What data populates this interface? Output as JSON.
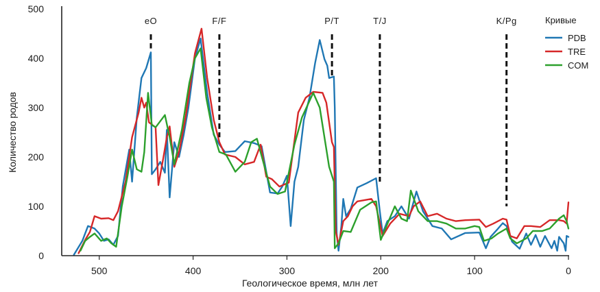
{
  "chart_data": {
    "type": "line",
    "xlabel": "Геологическое время, млн лет",
    "ylabel": "Количество родов",
    "xlim": [
      540,
      0
    ],
    "ylim": [
      0,
      500
    ],
    "x_reversed": true,
    "xticks": [
      500,
      400,
      300,
      200,
      100,
      0
    ],
    "yticks": [
      0,
      100,
      200,
      300,
      400,
      500
    ],
    "grid": false,
    "legend": {
      "title": "Кривые",
      "position": "right"
    },
    "events": [
      {
        "label": "eO",
        "x": 445,
        "y_bottom": 420
      },
      {
        "label": "F/F",
        "x": 372,
        "y_bottom": 240
      },
      {
        "label": "P/T",
        "x": 252,
        "y_bottom": 360
      },
      {
        "label": "T/J",
        "x": 201,
        "y_bottom": 150
      },
      {
        "label": "K/Pg",
        "x": 66,
        "y_bottom": 100
      }
    ],
    "series": [
      {
        "name": "PDB",
        "color": "#1f77b4",
        "points": [
          [
            527,
            2
          ],
          [
            518,
            30
          ],
          [
            515,
            45
          ],
          [
            512,
            60
          ],
          [
            505,
            55
          ],
          [
            500,
            45
          ],
          [
            495,
            30
          ],
          [
            490,
            33
          ],
          [
            485,
            22
          ],
          [
            480,
            40
          ],
          [
            475,
            140
          ],
          [
            468,
            215
          ],
          [
            465,
            150
          ],
          [
            460,
            280
          ],
          [
            455,
            360
          ],
          [
            450,
            380
          ],
          [
            445,
            412
          ],
          [
            444,
            165
          ],
          [
            440,
            175
          ],
          [
            435,
            190
          ],
          [
            430,
            168
          ],
          [
            428,
            255
          ],
          [
            425,
            118
          ],
          [
            420,
            230
          ],
          [
            415,
            200
          ],
          [
            410,
            245
          ],
          [
            405,
            300
          ],
          [
            398,
            400
          ],
          [
            392,
            440
          ],
          [
            385,
            330
          ],
          [
            378,
            245
          ],
          [
            372,
            225
          ],
          [
            366,
            210
          ],
          [
            355,
            212
          ],
          [
            345,
            232
          ],
          [
            335,
            228
          ],
          [
            327,
            222
          ],
          [
            318,
            128
          ],
          [
            310,
            126
          ],
          [
            305,
            140
          ],
          [
            300,
            162
          ],
          [
            296,
            60
          ],
          [
            292,
            150
          ],
          [
            288,
            180
          ],
          [
            282,
            275
          ],
          [
            276,
            320
          ],
          [
            270,
            390
          ],
          [
            265,
            437
          ],
          [
            260,
            398
          ],
          [
            257,
            385
          ],
          [
            255,
            360
          ],
          [
            250,
            363
          ],
          [
            249,
            300
          ],
          [
            247,
            45
          ],
          [
            245,
            10
          ],
          [
            242,
            60
          ],
          [
            240,
            115
          ],
          [
            237,
            80
          ],
          [
            232,
            95
          ],
          [
            225,
            138
          ],
          [
            215,
            147
          ],
          [
            205,
            157
          ],
          [
            201,
            90
          ],
          [
            198,
            45
          ],
          [
            193,
            70
          ],
          [
            185,
            80
          ],
          [
            178,
            100
          ],
          [
            170,
            75
          ],
          [
            162,
            130
          ],
          [
            155,
            90
          ],
          [
            145,
            60
          ],
          [
            135,
            55
          ],
          [
            125,
            33
          ],
          [
            110,
            46
          ],
          [
            95,
            47
          ],
          [
            88,
            15
          ],
          [
            83,
            38
          ],
          [
            75,
            55
          ],
          [
            70,
            66
          ],
          [
            66,
            60
          ],
          [
            60,
            28
          ],
          [
            52,
            14
          ],
          [
            45,
            45
          ],
          [
            40,
            22
          ],
          [
            35,
            42
          ],
          [
            30,
            18
          ],
          [
            25,
            40
          ],
          [
            18,
            15
          ],
          [
            15,
            30
          ],
          [
            12,
            10
          ],
          [
            10,
            38
          ],
          [
            5,
            25
          ],
          [
            3,
            10
          ],
          [
            2,
            40
          ],
          [
            0,
            38
          ]
        ]
      },
      {
        "name": "TRE",
        "color": "#d62728",
        "points": [
          [
            522,
            5
          ],
          [
            515,
            32
          ],
          [
            510,
            48
          ],
          [
            505,
            80
          ],
          [
            498,
            75
          ],
          [
            490,
            76
          ],
          [
            485,
            72
          ],
          [
            480,
            90
          ],
          [
            472,
            150
          ],
          [
            465,
            240
          ],
          [
            458,
            290
          ],
          [
            455,
            320
          ],
          [
            452,
            300
          ],
          [
            450,
            310
          ],
          [
            447,
            270
          ],
          [
            440,
            260
          ],
          [
            437,
            143
          ],
          [
            432,
            195
          ],
          [
            428,
            240
          ],
          [
            425,
            262
          ],
          [
            420,
            180
          ],
          [
            415,
            210
          ],
          [
            408,
            280
          ],
          [
            398,
            410
          ],
          [
            391,
            460
          ],
          [
            385,
            360
          ],
          [
            378,
            275
          ],
          [
            372,
            230
          ],
          [
            366,
            205
          ],
          [
            355,
            200
          ],
          [
            345,
            185
          ],
          [
            335,
            190
          ],
          [
            328,
            225
          ],
          [
            322,
            160
          ],
          [
            316,
            155
          ],
          [
            308,
            140
          ],
          [
            298,
            148
          ],
          [
            288,
            290
          ],
          [
            280,
            320
          ],
          [
            272,
            332
          ],
          [
            262,
            330
          ],
          [
            258,
            310
          ],
          [
            252,
            230
          ],
          [
            250,
            220
          ],
          [
            248,
            50
          ],
          [
            245,
            22
          ],
          [
            240,
            70
          ],
          [
            235,
            80
          ],
          [
            230,
            100
          ],
          [
            225,
            110
          ],
          [
            210,
            115
          ],
          [
            205,
            100
          ],
          [
            198,
            40
          ],
          [
            190,
            65
          ],
          [
            180,
            85
          ],
          [
            170,
            80
          ],
          [
            165,
            100
          ],
          [
            158,
            110
          ],
          [
            150,
            80
          ],
          [
            140,
            85
          ],
          [
            130,
            75
          ],
          [
            120,
            70
          ],
          [
            110,
            72
          ],
          [
            95,
            73
          ],
          [
            88,
            58
          ],
          [
            80,
            65
          ],
          [
            70,
            75
          ],
          [
            66,
            73
          ],
          [
            62,
            40
          ],
          [
            55,
            35
          ],
          [
            47,
            60
          ],
          [
            40,
            60
          ],
          [
            30,
            58
          ],
          [
            20,
            72
          ],
          [
            10,
            72
          ],
          [
            5,
            70
          ],
          [
            2,
            65
          ],
          [
            0,
            108
          ]
        ]
      },
      {
        "name": "COM",
        "color": "#2ca02c",
        "points": [
          [
            520,
            10
          ],
          [
            515,
            30
          ],
          [
            510,
            38
          ],
          [
            505,
            45
          ],
          [
            498,
            30
          ],
          [
            492,
            35
          ],
          [
            487,
            25
          ],
          [
            482,
            18
          ],
          [
            476,
            100
          ],
          [
            470,
            160
          ],
          [
            465,
            215
          ],
          [
            460,
            175
          ],
          [
            455,
            170
          ],
          [
            452,
            210
          ],
          [
            448,
            330
          ],
          [
            444,
            265
          ],
          [
            440,
            260
          ],
          [
            430,
            285
          ],
          [
            425,
            240
          ],
          [
            420,
            185
          ],
          [
            412,
            255
          ],
          [
            404,
            350
          ],
          [
            398,
            400
          ],
          [
            392,
            420
          ],
          [
            386,
            320
          ],
          [
            380,
            260
          ],
          [
            372,
            210
          ],
          [
            365,
            205
          ],
          [
            355,
            170
          ],
          [
            345,
            190
          ],
          [
            338,
            230
          ],
          [
            332,
            237
          ],
          [
            326,
            195
          ],
          [
            318,
            140
          ],
          [
            310,
            125
          ],
          [
            302,
            130
          ],
          [
            292,
            225
          ],
          [
            284,
            280
          ],
          [
            272,
            330
          ],
          [
            265,
            300
          ],
          [
            255,
            180
          ],
          [
            250,
            150
          ],
          [
            249,
            15
          ],
          [
            245,
            25
          ],
          [
            240,
            50
          ],
          [
            232,
            48
          ],
          [
            222,
            93
          ],
          [
            210,
            108
          ],
          [
            205,
            110
          ],
          [
            200,
            32
          ],
          [
            195,
            55
          ],
          [
            185,
            100
          ],
          [
            178,
            75
          ],
          [
            172,
            70
          ],
          [
            168,
            132
          ],
          [
            160,
            90
          ],
          [
            150,
            70
          ],
          [
            140,
            70
          ],
          [
            130,
            65
          ],
          [
            120,
            55
          ],
          [
            110,
            55
          ],
          [
            100,
            60
          ],
          [
            95,
            58
          ],
          [
            90,
            30
          ],
          [
            82,
            35
          ],
          [
            75,
            45
          ],
          [
            66,
            55
          ],
          [
            62,
            35
          ],
          [
            55,
            25
          ],
          [
            45,
            35
          ],
          [
            38,
            50
          ],
          [
            28,
            50
          ],
          [
            20,
            55
          ],
          [
            10,
            75
          ],
          [
            5,
            82
          ],
          [
            2,
            70
          ],
          [
            0,
            55
          ]
        ]
      }
    ]
  }
}
